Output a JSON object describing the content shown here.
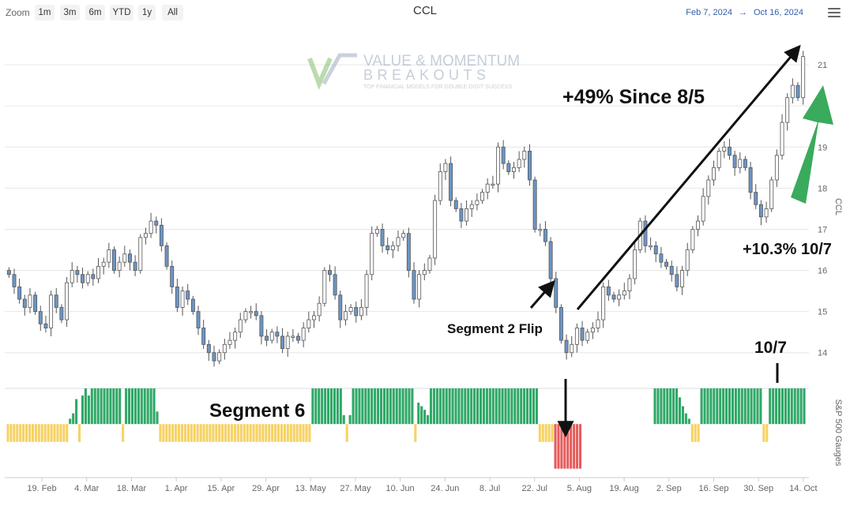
{
  "toolbar": {
    "zoom_label": "Zoom",
    "buttons": [
      "1m",
      "3m",
      "6m",
      "YTD",
      "1y",
      "All"
    ],
    "from_date": "Feb 7, 2024",
    "arrow": "→",
    "to_date": "Oct 16, 2024",
    "menu_icon": "hamburger-menu-icon"
  },
  "watermark": {
    "line1": "VALUE & MOMENTUM",
    "line2": "BREAKOUTS",
    "line3": "TOP FINANCIAL MODELS FOR DOUBLE-DIGIT SUCCESS"
  },
  "annotations": {
    "since": "+49% Since 8/5",
    "flip": "Segment 2 Flip",
    "segment6": "Segment 6",
    "recent": "+10.3% 10/7",
    "date_marker": "10/7"
  },
  "colors": {
    "up_candle": "#ffffff",
    "down_candle": "#6b95c6",
    "candle_border": "#555555",
    "gauge_positive": "#2fa867",
    "gauge_neutral": "#f6d264",
    "gauge_negative": "#e65b5b",
    "arrow_green": "#3aaa5c"
  },
  "chart_data": [
    {
      "type": "candlestick",
      "title": "CCL",
      "ylabel": "CCL",
      "ylim": [
        13.4,
        22
      ],
      "yticks": [
        14,
        15,
        16,
        17,
        18,
        19,
        20,
        21
      ],
      "x_ticks": [
        "19. Feb",
        "4. Mar",
        "18. Mar",
        "1. Apr",
        "15. Apr",
        "29. Apr",
        "13. May",
        "27. May",
        "10. Jun",
        "24. Jun",
        "8. Jul",
        "22. Jul",
        "5. Aug",
        "19. Aug",
        "2. Sep",
        "16. Sep",
        "30. Sep",
        "14. Oct"
      ],
      "grid": true,
      "close": [
        15.9,
        15.6,
        15.3,
        15.1,
        15.4,
        15.0,
        14.7,
        14.6,
        15.4,
        15.1,
        14.8,
        15.7,
        16.0,
        15.9,
        15.7,
        15.9,
        15.8,
        16.1,
        16.2,
        16.5,
        16.0,
        16.2,
        16.4,
        16.2,
        16.0,
        16.8,
        16.9,
        17.2,
        17.1,
        16.6,
        16.1,
        15.6,
        15.1,
        15.5,
        15.3,
        15.0,
        14.6,
        14.2,
        14.0,
        13.8,
        14.0,
        14.2,
        14.3,
        14.5,
        14.8,
        15.0,
        15.0,
        14.9,
        14.4,
        14.3,
        14.5,
        14.4,
        14.1,
        14.4,
        14.4,
        14.3,
        14.6,
        14.8,
        14.9,
        15.2,
        16.0,
        15.9,
        15.4,
        14.8,
        15.0,
        15.1,
        14.9,
        15.1,
        15.9,
        16.9,
        17.0,
        16.6,
        16.5,
        16.6,
        16.8,
        16.9,
        16.0,
        15.3,
        15.9,
        16.0,
        16.3,
        17.7,
        18.4,
        18.6,
        17.7,
        17.5,
        17.2,
        17.5,
        17.6,
        17.7,
        17.9,
        18.1,
        18.1,
        19.0,
        18.6,
        18.4,
        18.5,
        18.7,
        18.9,
        18.2,
        17.0,
        17.0,
        16.7,
        15.8,
        15.1,
        14.3,
        14.0,
        14.2,
        14.6,
        14.3,
        14.5,
        14.6,
        14.8,
        15.6,
        15.4,
        15.3,
        15.4,
        15.5,
        15.8,
        16.5,
        17.2,
        16.6,
        16.6,
        16.4,
        16.2,
        16.1,
        15.9,
        15.6,
        16.0,
        16.5,
        17.0,
        17.2,
        17.8,
        18.2,
        18.5,
        18.9,
        19.0,
        18.8,
        18.5,
        18.7,
        18.5,
        17.9,
        17.6,
        17.3,
        17.5,
        18.2,
        18.8,
        19.6,
        20.2,
        20.5,
        20.2,
        21.2
      ]
    },
    {
      "type": "bar",
      "title": "",
      "ylabel": "S&P 500 Gauges",
      "ylim": [
        -3,
        2
      ],
      "values": [
        -1,
        -1,
        -1,
        -1,
        -1,
        -1,
        -1,
        -1,
        -1,
        -1,
        -1,
        -1,
        -1,
        -1,
        -1,
        -1,
        -1,
        -1,
        -1,
        -1,
        0.3,
        0.6,
        1.4,
        -1,
        1.6,
        2,
        1.6,
        2,
        2,
        2,
        2,
        2,
        2,
        2,
        2,
        2,
        2,
        -1,
        2,
        2,
        2,
        2,
        2,
        2,
        2,
        2,
        2,
        2,
        0.7,
        -1,
        -1,
        -1,
        -1,
        -1,
        -1,
        -1,
        -1,
        -1,
        -1,
        -1,
        -1,
        -1,
        -1,
        -1,
        -1,
        -1,
        -1,
        -1,
        -1,
        -1,
        -1,
        -1,
        -1,
        -1,
        -1,
        -1,
        -1,
        -1,
        -1,
        -1,
        -1,
        -1,
        -1,
        -1,
        -1,
        -1,
        -1,
        -1,
        -1,
        -1,
        -1,
        -1,
        -1,
        -1,
        -1,
        -1,
        -1,
        -1,
        2,
        2,
        2,
        2,
        2,
        2,
        2,
        2,
        2,
        2,
        0.5,
        -1,
        0.5,
        2,
        2,
        2,
        2,
        2,
        2,
        2,
        2,
        2,
        2,
        2,
        2,
        2,
        2,
        2,
        2,
        2,
        2,
        2,
        2,
        -1,
        1.2,
        1.0,
        0.8,
        0.5,
        2,
        2,
        2,
        2,
        2,
        2,
        2,
        2,
        2,
        2,
        2,
        2,
        2,
        2,
        2,
        2,
        2,
        2,
        2,
        2,
        2,
        2,
        2,
        2,
        2,
        2,
        2,
        2,
        2,
        2,
        2,
        2,
        2,
        2,
        2,
        -1,
        -1,
        -1,
        -1,
        -1,
        -2.5,
        -2.5,
        -2.5,
        -2.5,
        -2.5,
        -2.5,
        -2.5,
        -2.5,
        -2.5,
        0,
        0,
        0,
        0,
        0,
        0,
        0,
        0,
        0,
        0,
        0,
        0,
        0,
        0,
        0,
        0,
        0,
        0,
        0,
        0,
        0,
        0,
        0,
        2,
        2,
        2,
        2,
        2,
        2,
        2,
        2,
        1.5,
        1.0,
        0.6,
        0.3,
        -1,
        -1,
        -1,
        2,
        2,
        2,
        2,
        2,
        2,
        2,
        2,
        2,
        2,
        2,
        2,
        2,
        2,
        2,
        2,
        2,
        2,
        2,
        2,
        -1,
        -1,
        2,
        2,
        2,
        2,
        2,
        2,
        2,
        2,
        2,
        2,
        2,
        2
      ]
    }
  ]
}
